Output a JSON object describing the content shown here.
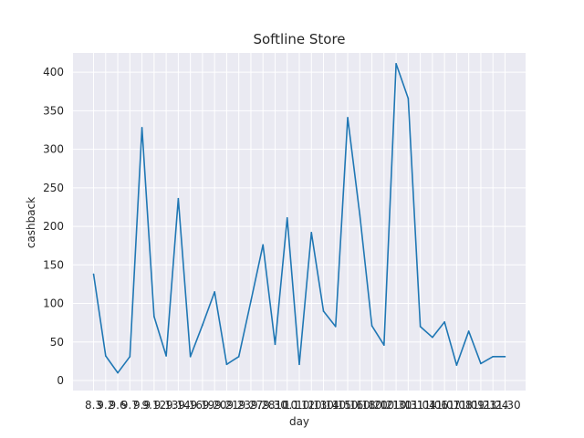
{
  "chart_data": {
    "type": "line",
    "title": "Softline Store",
    "xlabel": "day",
    "ylabel": "cashback",
    "ylim": [
      -13,
      425
    ],
    "yticks": [
      0,
      50,
      100,
      150,
      200,
      250,
      300,
      350,
      400
    ],
    "grid": true,
    "line_color": "#1f77b4",
    "background_color": "#eaeaf2",
    "grid_color": "#ffffff",
    "x": [
      "8.3",
      "9.2",
      "9.6",
      "9.7",
      "9.9",
      "9.12",
      "9.13",
      "9.14",
      "9.16",
      "9.19",
      "9.20",
      "9.21",
      "9.23",
      "9.27",
      "9.28",
      "9.30",
      "10.1",
      "10.12",
      "10.13",
      "10.14",
      "10.15",
      "10.16",
      "10.18",
      "10.20",
      "10.21",
      "10.30",
      "10.31",
      "11.04",
      "11.06",
      "11.07",
      "11.08",
      "11.09",
      "11.23",
      "11.24",
      "11.30"
    ],
    "values": [
      138,
      32,
      10,
      31,
      328,
      83,
      32,
      236,
      31,
      72,
      115,
      21,
      31,
      103,
      176,
      47,
      211,
      21,
      192,
      90,
      70,
      341,
      215,
      71,
      46,
      411,
      366,
      70,
      56,
      76,
      20,
      64,
      22,
      31,
      31
    ]
  }
}
